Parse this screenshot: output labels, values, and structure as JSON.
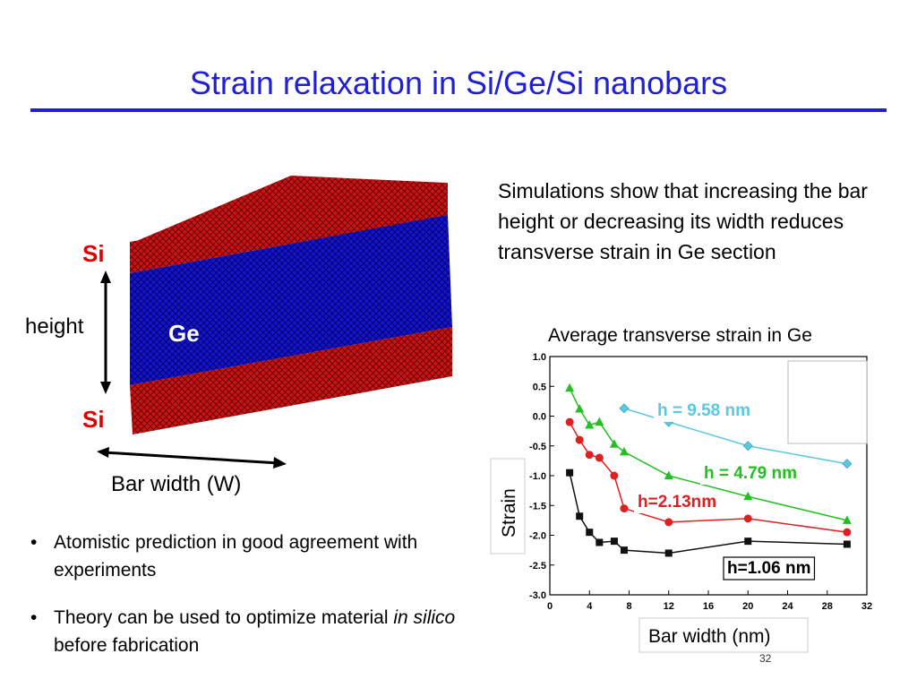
{
  "slide": {
    "title": "Strain relaxation in Si/Ge/Si nanobars",
    "summary": "Simulations show that increasing the bar height or decreasing its width reduces transverse strain in Ge section",
    "bullets": [
      {
        "text": "Atomistic prediction in good agreement with experiments"
      },
      {
        "before": "Theory can be used to optimize material ",
        "em": "in silico",
        "after": " before fabrication"
      }
    ],
    "page_number": "32"
  },
  "figure": {
    "top_layer_label": "Si",
    "middle_layer_label": "Ge",
    "bottom_layer_label": "Si",
    "height_label": "height",
    "width_label": "Bar width (W)",
    "colors": {
      "si": "#c81414",
      "ge": "#1414c8"
    }
  },
  "chart_data": {
    "type": "line",
    "title": "Average transverse strain in Ge",
    "xlabel": "Bar width (nm)",
    "ylabel": "Strain",
    "xlim": [
      0,
      32
    ],
    "ylim": [
      -3.0,
      1.0
    ],
    "xticks": [
      0,
      4,
      8,
      12,
      16,
      20,
      24,
      28,
      32
    ],
    "yticks": [
      1.0,
      0.5,
      0.0,
      -0.5,
      -1.0,
      -1.5,
      -2.0,
      -2.5,
      -3.0
    ],
    "grid": false,
    "series": [
      {
        "name": "h = 9.58 nm",
        "color": "#5bc8e0",
        "marker": "diamond",
        "x": [
          7.5,
          12,
          20,
          30
        ],
        "y": [
          0.13,
          -0.1,
          -0.5,
          -0.8
        ]
      },
      {
        "name": "h = 4.79 nm",
        "color": "#22c022",
        "marker": "triangle",
        "x": [
          2,
          3,
          4,
          5,
          6.5,
          7.5,
          12,
          20,
          30
        ],
        "y": [
          0.47,
          0.12,
          -0.15,
          -0.1,
          -0.47,
          -0.6,
          -1.0,
          -1.35,
          -1.75
        ]
      },
      {
        "name": "h=2.13nm",
        "color": "#e02020",
        "marker": "circle",
        "x": [
          2,
          3,
          4,
          5,
          6.5,
          7.5,
          12,
          20,
          30
        ],
        "y": [
          -0.1,
          -0.4,
          -0.65,
          -0.7,
          -1.0,
          -1.55,
          -1.78,
          -1.72,
          -1.95
        ]
      },
      {
        "name": "h=1.06 nm",
        "color": "#111111",
        "marker": "square",
        "x": [
          2,
          3,
          4,
          5,
          6.5,
          7.5,
          12,
          20,
          30
        ],
        "y": [
          -0.95,
          -1.68,
          -1.95,
          -2.12,
          -2.1,
          -2.25,
          -2.3,
          -2.1,
          -2.15
        ]
      }
    ]
  }
}
